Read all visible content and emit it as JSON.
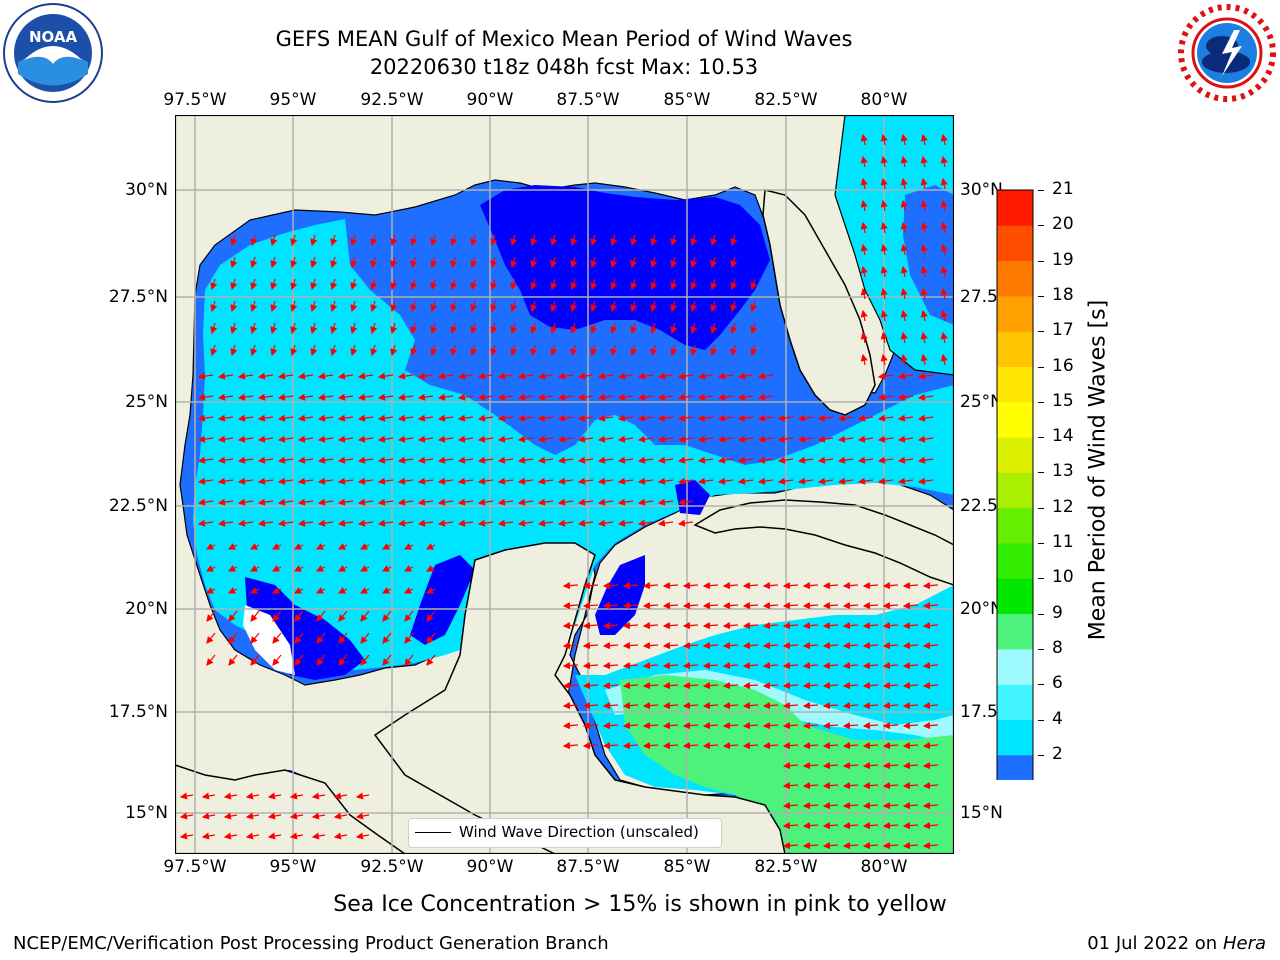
{
  "header": {
    "title_line1": "GEFS MEAN Gulf of Mexico Mean Period of Wind Waves",
    "title_line2": "20220630 t18z 048h fcst   Max: 10.53"
  },
  "logos": {
    "left": {
      "icon": "noaa-logo-icon",
      "text": "NOAA",
      "ring_text": "NATIONAL OCEANIC AND ATMOSPHERIC ADMINISTRATION · U.S. DEPARTMENT OF COMMERCE"
    },
    "right": {
      "icon": "nws-logo-icon",
      "ring_text": "NATIONAL WEATHER SERVICE"
    }
  },
  "map": {
    "lon_ticks_top": [
      "97.5°W",
      "95°W",
      "92.5°W",
      "90°W",
      "87.5°W",
      "85°W",
      "82.5°W",
      "80°W"
    ],
    "lon_ticks_bottom": [
      "97.5°W",
      "95°W",
      "92.5°W",
      "90°W",
      "87.5°W",
      "85°W",
      "82.5°W",
      "80°W"
    ],
    "lat_ticks_left": [
      "30°N",
      "27.5°N",
      "25°N",
      "22.5°N",
      "20°N",
      "17.5°N",
      "15°N"
    ],
    "lat_ticks_right": [
      "30°N",
      "27.5",
      "25°N",
      "22.5",
      "20°N",
      "17.5",
      "15°N"
    ],
    "legend_text": "Wind Wave Direction (unscaled)",
    "colors": {
      "land": "#efefdf",
      "coast": "#000000",
      "grid": "#b0b0b0",
      "arrow": "#ff0000"
    }
  },
  "colorbar": {
    "label": "Mean Period of Wind Waves [s]",
    "ticks": [
      "21",
      "20",
      "19",
      "18",
      "17",
      "16",
      "15",
      "14",
      "13",
      "12",
      "11",
      "10",
      "9",
      "8",
      "6",
      "4",
      "2"
    ],
    "levels_bottom_to_top": [
      {
        "color": "#1e6fff"
      },
      {
        "color": "#00e5ff"
      },
      {
        "color": "#40f3ff"
      },
      {
        "color": "#9ffaff"
      },
      {
        "color": "#4cf27c"
      },
      {
        "color": "#00e800"
      },
      {
        "color": "#33ee00"
      },
      {
        "color": "#66ee00"
      },
      {
        "color": "#aaee00"
      },
      {
        "color": "#ddf000"
      },
      {
        "color": "#ffff00"
      },
      {
        "color": "#ffe600"
      },
      {
        "color": "#ffc400"
      },
      {
        "color": "#ffa000"
      },
      {
        "color": "#ff7a00"
      },
      {
        "color": "#ff4e00"
      },
      {
        "color": "#ff1a00"
      }
    ],
    "under_color": "#0000ff"
  },
  "chart_data": {
    "type": "heatmap",
    "title": "GEFS MEAN Gulf of Mexico Mean Period of Wind Waves",
    "subtitle": "20220630 t18z 048h fcst   Max: 10.53",
    "variable": "Mean Period of Wind Waves [s]",
    "xlim": [
      -98.5,
      -78.7
    ],
    "ylim": [
      14,
      31.7
    ],
    "max": 10.53,
    "contour_levels": [
      2,
      4,
      6,
      8,
      9,
      10,
      11,
      12,
      13,
      14,
      15,
      16,
      17,
      18,
      19,
      20,
      21
    ]
  },
  "footer": {
    "caption": "Sea Ice Concentration > 15% is shown in pink to yellow",
    "left": "NCEP/EMC/Verification Post Processing Product Generation Branch",
    "right_date": "01 Jul 2022 on",
    "right_machine": "Hera"
  }
}
